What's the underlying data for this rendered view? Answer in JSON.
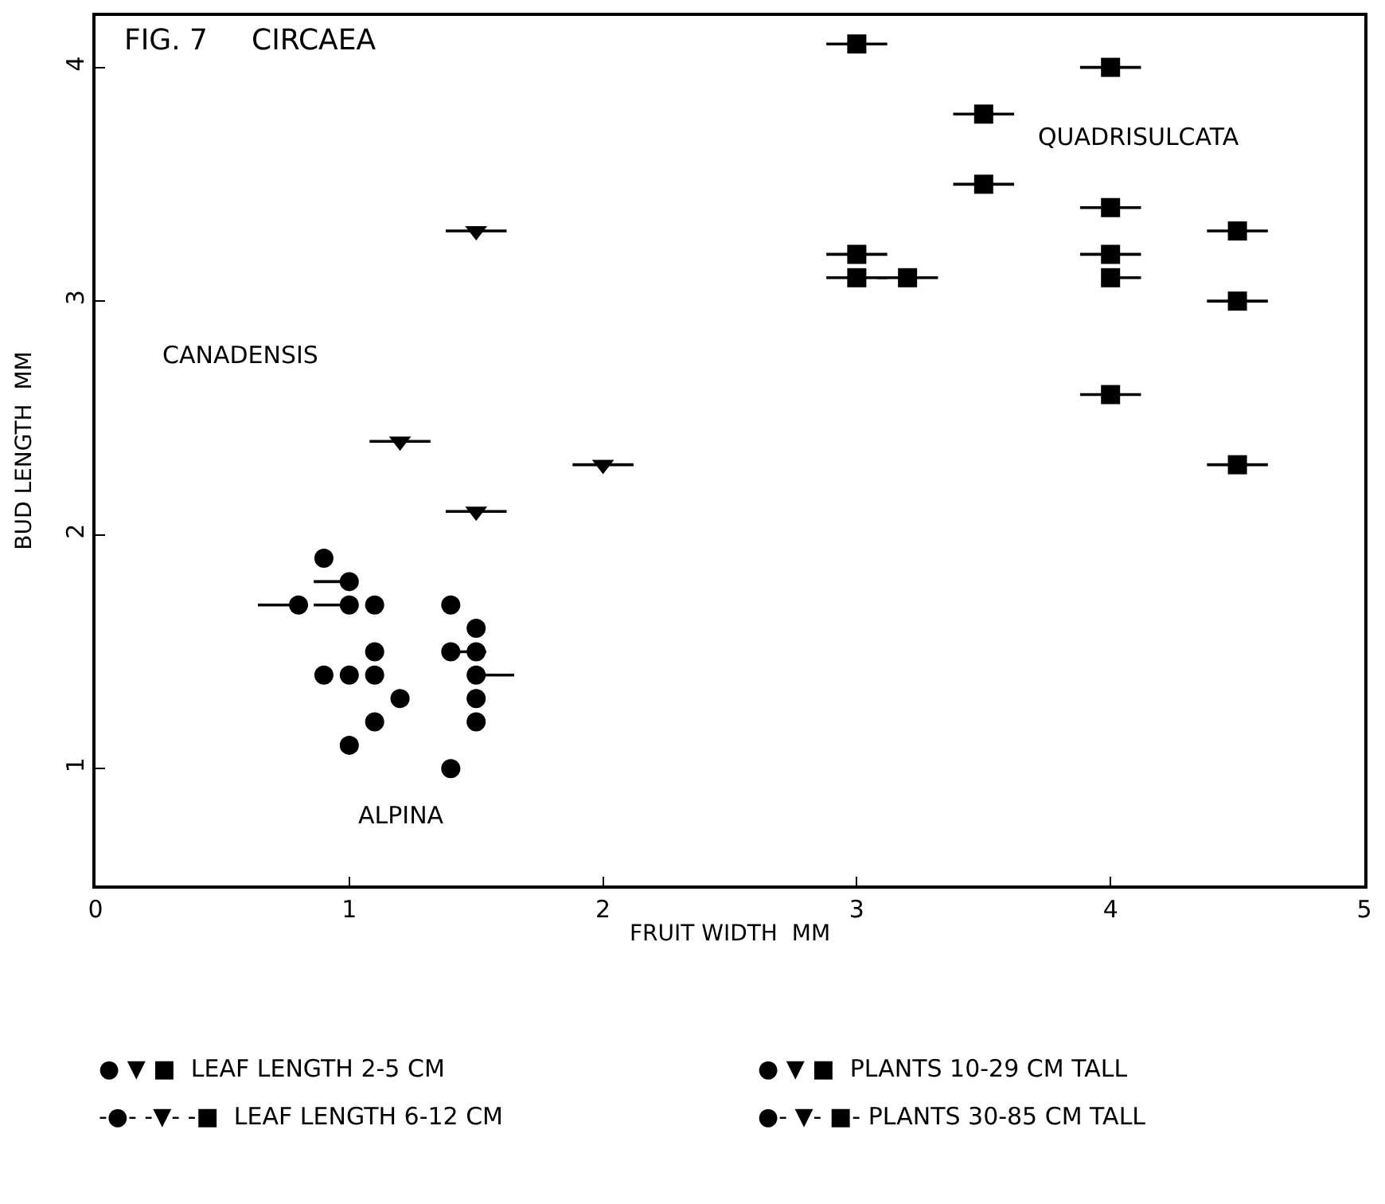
{
  "chart_data": {
    "type": "scatter",
    "xlabel": "FRUIT WIDTH  MM",
    "ylabel": "BUD LENGTH  MM",
    "xlim": [
      0,
      5
    ],
    "xticks": [
      0,
      1,
      2,
      3,
      4,
      5
    ],
    "ylim": [
      0.5,
      4.22
    ],
    "yticks": [
      1,
      2,
      3,
      4
    ],
    "series": [
      {
        "color": "#000000",
        "marker": "circle",
        "x": [
          0.9,
          1.0,
          0.8,
          1.0,
          1.1,
          1.4,
          1.5,
          1.1,
          1.4,
          1.5,
          0.9,
          1.0,
          1.1,
          1.5,
          1.2,
          1.5,
          1.1,
          1.5,
          1.0,
          1.4
        ],
        "values": [
          1.9,
          1.8,
          1.7,
          1.7,
          1.7,
          1.7,
          1.6,
          1.5,
          1.5,
          1.5,
          1.4,
          1.4,
          1.4,
          1.4,
          1.3,
          1.3,
          1.2,
          1.2,
          1.1,
          1.0
        ],
        "xerrors": [
          null,
          [
            0.86,
            1.0
          ],
          [
            0.64,
            0.8
          ],
          [
            0.86,
            1.0
          ],
          null,
          null,
          null,
          null,
          [
            1.4,
            1.54
          ],
          null,
          null,
          null,
          null,
          [
            1.5,
            1.65
          ],
          null,
          null,
          null,
          null,
          null,
          null
        ]
      },
      {
        "color": "#000000",
        "marker": "triangle",
        "x": [
          1.5,
          1.2,
          2.0,
          1.5
        ],
        "values": [
          3.3,
          2.4,
          2.3,
          2.1
        ],
        "xerrors": [
          0.12,
          0.12,
          0.12,
          0.12
        ]
      },
      {
        "color": "#000000",
        "marker": "square",
        "x": [
          3.0,
          4.0,
          3.5,
          3.5,
          4.0,
          4.5,
          3.0,
          4.0,
          3.0,
          3.2,
          4.0,
          4.5,
          4.0,
          4.5
        ],
        "values": [
          4.1,
          4.0,
          3.8,
          3.5,
          3.4,
          3.3,
          3.2,
          3.2,
          3.1,
          3.1,
          3.1,
          3.0,
          2.6,
          2.3
        ],
        "xerrors": [
          0.12,
          0.12,
          0.12,
          0.12,
          0.12,
          0.12,
          0.12,
          0.12,
          0.12,
          0.12,
          [
            4.0,
            4.12
          ],
          0.12,
          0.12,
          0.12
        ]
      }
    ],
    "annotations": [
      "FIG. 7",
      "CIRCAEA",
      "CANADENSIS",
      "ALPINA",
      "QUADRISULCATA",
      "● ▼ ■  LEAF LENGTH 2-5 CM",
      "-●- -▼- -■  LEAF LENGTH 6-12 CM",
      "● ▼ ■  PLANTS 10-29 CM TALL",
      "●- ▼- ■- PLANTS 30-85 CM TALL"
    ]
  }
}
